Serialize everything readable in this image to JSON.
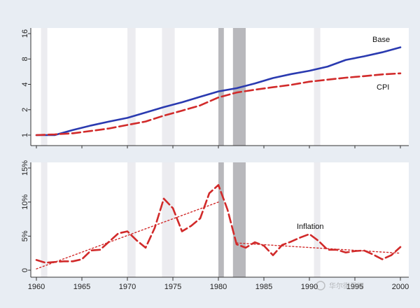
{
  "chart_data": [
    {
      "type": "line",
      "y_scale": "log2",
      "ylim": [
        1,
        16
      ],
      "xlim": [
        1960,
        2000
      ],
      "y_ticks": [
        1,
        2,
        4,
        8,
        16
      ],
      "grid": false,
      "shaded_periods": [
        {
          "start": 1960.5,
          "end": 1961.2,
          "shade": "light"
        },
        {
          "start": 1970.0,
          "end": 1970.9,
          "shade": "light"
        },
        {
          "start": 1973.8,
          "end": 1975.2,
          "shade": "light"
        },
        {
          "start": 1980.0,
          "end": 1980.6,
          "shade": "dark"
        },
        {
          "start": 1981.6,
          "end": 1983.0,
          "shade": "dark"
        },
        {
          "start": 1990.5,
          "end": 1991.2,
          "shade": "light"
        }
      ],
      "series": [
        {
          "name": "Base",
          "color": "#2a3ab0",
          "style": "solid",
          "x": [
            1960,
            1962,
            1964,
            1966,
            1968,
            1970,
            1972,
            1974,
            1976,
            1978,
            1980,
            1982,
            1984,
            1986,
            1988,
            1990,
            1992,
            1994,
            1996,
            1998,
            2000
          ],
          "values": [
            1.0,
            1.0,
            1.15,
            1.3,
            1.45,
            1.6,
            1.85,
            2.15,
            2.45,
            2.85,
            3.3,
            3.6,
            4.1,
            4.75,
            5.3,
            5.8,
            6.5,
            7.8,
            8.6,
            9.6,
            11.0
          ]
        },
        {
          "name": "CPI",
          "color": "#d12a2a",
          "style": "dashed",
          "x": [
            1960,
            1962,
            1964,
            1966,
            1968,
            1970,
            1972,
            1974,
            1976,
            1978,
            1980,
            1982,
            1984,
            1986,
            1988,
            1990,
            1992,
            1994,
            1996,
            1998,
            2000
          ],
          "values": [
            1.0,
            1.02,
            1.05,
            1.12,
            1.2,
            1.32,
            1.45,
            1.7,
            1.95,
            2.25,
            2.8,
            3.2,
            3.45,
            3.7,
            3.95,
            4.3,
            4.55,
            4.8,
            5.0,
            5.25,
            5.4
          ]
        }
      ]
    },
    {
      "type": "line",
      "ylim": [
        -1,
        15
      ],
      "xlim": [
        1960,
        2000
      ],
      "y_ticks": [
        0,
        5,
        10,
        15
      ],
      "y_tick_labels": [
        "0",
        "5%",
        "10%",
        "15%"
      ],
      "x_ticks": [
        1960,
        1965,
        1970,
        1975,
        1980,
        1985,
        1990,
        1995,
        2000
      ],
      "x_tick_labels": [
        "1960",
        "1965",
        "1970",
        "1975",
        "1980",
        "1985",
        "1990",
        "1995",
        "2000"
      ],
      "grid": false,
      "shaded_periods": [
        {
          "start": 1960.5,
          "end": 1961.2,
          "shade": "light"
        },
        {
          "start": 1970.0,
          "end": 1970.9,
          "shade": "light"
        },
        {
          "start": 1973.8,
          "end": 1975.2,
          "shade": "light"
        },
        {
          "start": 1980.0,
          "end": 1980.6,
          "shade": "dark"
        },
        {
          "start": 1981.6,
          "end": 1983.0,
          "shade": "dark"
        },
        {
          "start": 1990.5,
          "end": 1991.2,
          "shade": "light"
        }
      ],
      "series": [
        {
          "name": "Inflation",
          "color": "#d12a2a",
          "style": "dashed",
          "x": [
            1960,
            1961,
            1962,
            1963,
            1964,
            1965,
            1966,
            1967,
            1968,
            1969,
            1970,
            1971,
            1972,
            1973,
            1974,
            1975,
            1976,
            1977,
            1978,
            1979,
            1980,
            1981,
            1982,
            1983,
            1984,
            1985,
            1986,
            1987,
            1988,
            1989,
            1990,
            1991,
            1992,
            1993,
            1994,
            1995,
            1996,
            1997,
            1998,
            1999,
            2000
          ],
          "values": [
            1.5,
            1.1,
            1.2,
            1.3,
            1.3,
            1.6,
            2.9,
            3.0,
            4.2,
            5.4,
            5.7,
            4.4,
            3.3,
            6.2,
            10.5,
            9.1,
            5.7,
            6.5,
            7.6,
            11.3,
            12.5,
            8.9,
            3.8,
            3.3,
            4.1,
            3.6,
            2.2,
            3.7,
            4.2,
            4.8,
            5.3,
            4.3,
            3.0,
            3.0,
            2.6,
            2.8,
            2.9,
            2.3,
            1.6,
            2.2,
            3.4
          ]
        },
        {
          "color": "#d12a2a",
          "style": "dotted",
          "x": [
            1960,
            1980
          ],
          "values": [
            0.2,
            10.0
          ]
        },
        {
          "color": "#d12a2a",
          "style": "dotted",
          "x": [
            1982,
            2000
          ],
          "values": [
            4.0,
            2.5
          ]
        }
      ]
    }
  ],
  "labels": {
    "base": "Base",
    "cpi": "CPI",
    "inflation": "Inflation"
  },
  "watermark": "华尔街见闻"
}
